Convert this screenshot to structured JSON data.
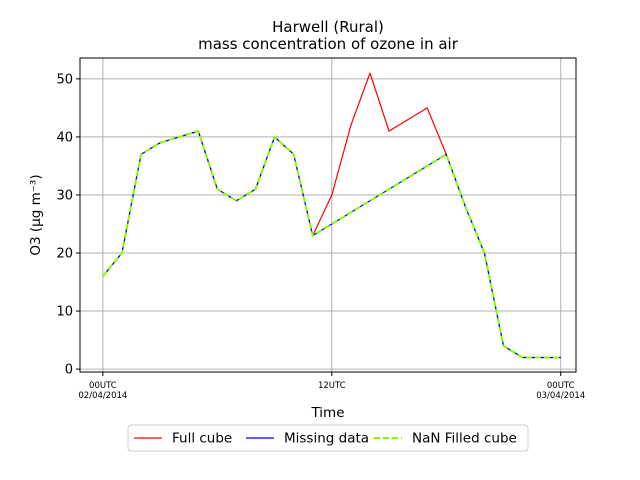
{
  "chart_data": {
    "type": "line",
    "title": "Harwell (Rural)",
    "subtitle": "mass concentration of ozone in air",
    "xlabel": "Time",
    "ylabel": "O3 (µg m⁻³)",
    "ylim": [
      -0.5,
      53.6
    ],
    "yticks": [
      0,
      10,
      20,
      30,
      40,
      50
    ],
    "xlim_hours": [
      -1.2,
      24.8
    ],
    "xticks": [
      {
        "hour": 0,
        "line1": "00UTC",
        "line2": "02/04/2014"
      },
      {
        "hour": 12,
        "line1": "12UTC",
        "line2": ""
      },
      {
        "hour": 24,
        "line1": "00UTC",
        "line2": "03/04/2014"
      }
    ],
    "grid": true,
    "legend_position": "bottom-center",
    "series": [
      {
        "name": "Full cube",
        "color": "#ff0000",
        "style": "solid",
        "x": [
          0,
          1,
          2,
          3,
          4,
          5,
          6,
          7,
          8,
          9,
          10,
          11,
          12,
          13,
          14,
          15,
          16,
          17,
          18,
          19,
          20,
          21,
          22,
          23,
          24
        ],
        "y": [
          16,
          20,
          37,
          39,
          40,
          41,
          31,
          29,
          31,
          40,
          37,
          23,
          30,
          42,
          51,
          41,
          43,
          45,
          37,
          28,
          20,
          4,
          2,
          2,
          2
        ]
      },
      {
        "name": "Missing data",
        "color": "#0000ff",
        "style": "solid",
        "x": [
          0,
          1,
          2,
          3,
          4,
          5,
          6,
          7,
          8,
          9,
          10,
          11,
          18,
          19,
          20,
          21,
          22,
          23,
          24
        ],
        "y": [
          16,
          20,
          37,
          39,
          40,
          41,
          31,
          29,
          31,
          40,
          37,
          23,
          37,
          28,
          20,
          4,
          2,
          2,
          2
        ]
      },
      {
        "name": "NaN Filled cube",
        "color": "#7fff00",
        "style": "dashed",
        "x": [
          0,
          1,
          2,
          3,
          4,
          5,
          6,
          7,
          8,
          9,
          10,
          11,
          18,
          19,
          20,
          21,
          22,
          23,
          24
        ],
        "y": [
          16,
          20,
          37,
          39,
          40,
          41,
          31,
          29,
          31,
          40,
          37,
          23,
          37,
          28,
          20,
          4,
          2,
          2,
          2
        ]
      }
    ]
  }
}
